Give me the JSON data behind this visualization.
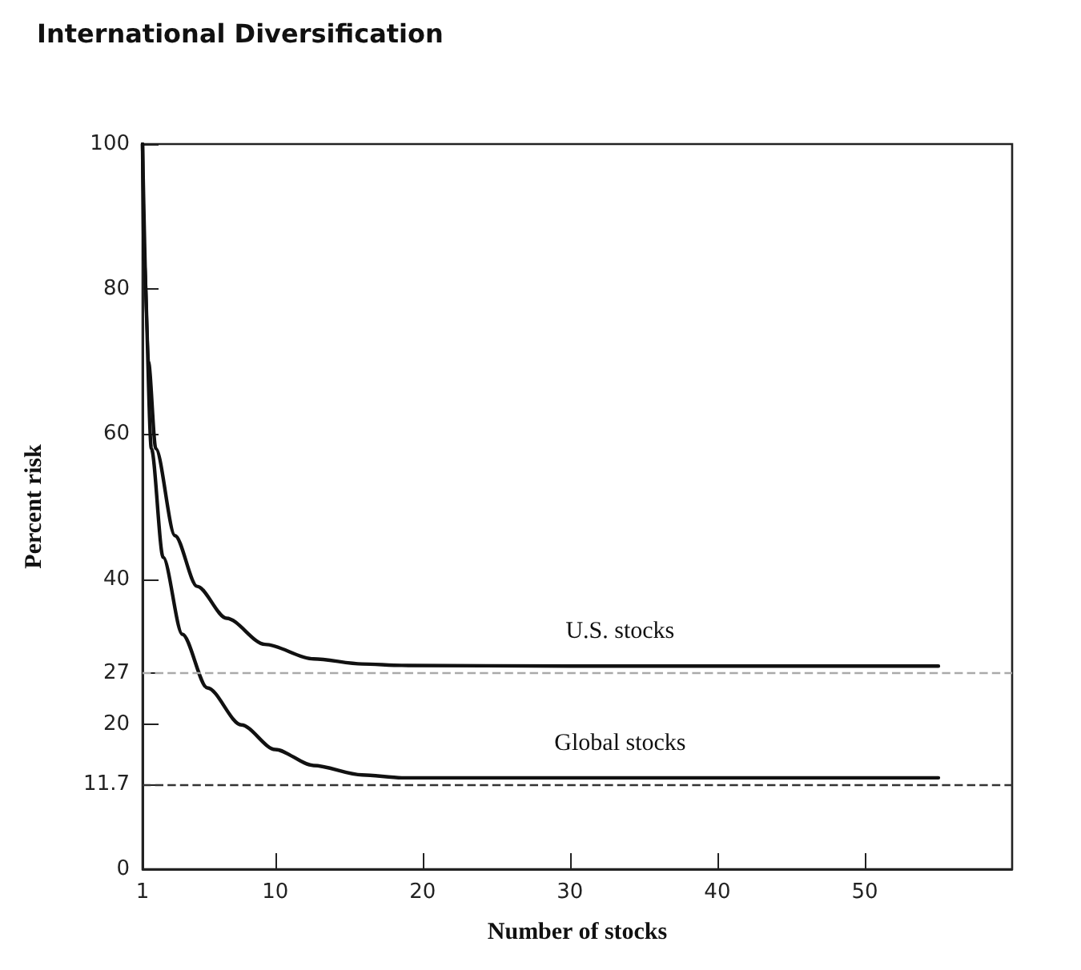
{
  "chart_data": {
    "type": "line",
    "title": "International Diversification",
    "xlabel": "Number of stocks",
    "ylabel": "Percent risk",
    "xlim": [
      1,
      60
    ],
    "xticks": [
      1,
      10,
      20,
      30,
      40,
      50
    ],
    "ylim": [
      0,
      100
    ],
    "yticks": [
      0,
      11.7,
      20,
      27,
      40,
      60,
      80,
      100
    ],
    "series": [
      {
        "name": "U.S. stocks",
        "color": "#111111",
        "x": [
          1,
          1.4,
          1.9,
          3.2,
          4.7,
          6.7,
          9.3,
          12.6,
          15.9,
          18.6,
          30,
          40,
          55
        ],
        "values": [
          100,
          70,
          58,
          46,
          39,
          34.6,
          31,
          29,
          28.3,
          28.1,
          28,
          28,
          28
        ]
      },
      {
        "name": "Global stocks",
        "color": "#111111",
        "x": [
          1,
          1.1,
          1.6,
          2.4,
          3.7,
          5.4,
          7.7,
          10,
          12.6,
          15.9,
          18.6,
          30,
          40,
          55
        ],
        "values": [
          100,
          84,
          58,
          43,
          32.4,
          25,
          19.9,
          16.5,
          14.3,
          13,
          12.6,
          12.6,
          12.6,
          12.6
        ]
      }
    ],
    "ref_lines": [
      {
        "axis": "y",
        "value": 27,
        "color": "#aaaaaa",
        "line_style": "dashed"
      },
      {
        "axis": "y",
        "value": 11.7,
        "color": "#333333",
        "line_style": "dashed"
      }
    ],
    "grid": false,
    "legend": false,
    "marker": "none",
    "line_style": "solid"
  }
}
